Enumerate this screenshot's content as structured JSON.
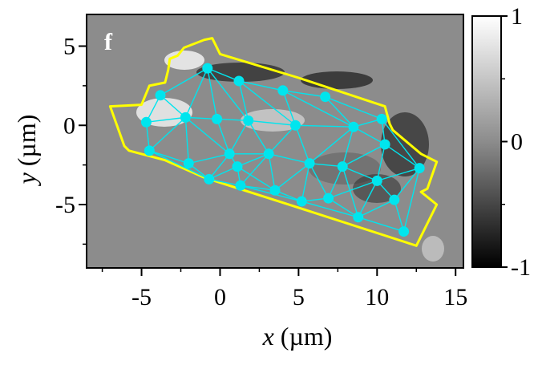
{
  "chart_data": {
    "type": "heatmap",
    "panel_label": "f",
    "xlabel_var": "x",
    "xlabel_unit": " (µm)",
    "ylabel_var": "y",
    "ylabel_unit": " (µm)",
    "xlim": [
      -8.5,
      15.5
    ],
    "ylim": [
      -9,
      7
    ],
    "xticks": [
      -5,
      0,
      5,
      10,
      15
    ],
    "xtick_labels": [
      "-5",
      "0",
      "5",
      "10",
      "15"
    ],
    "yticks": [
      5,
      0,
      -5
    ],
    "ytick_labels": [
      "5",
      "0",
      "-5"
    ],
    "colorbar": {
      "range": [
        -1,
        1
      ],
      "ticks": [
        1,
        0,
        -1
      ],
      "tick_labels": [
        "1",
        "0",
        "-1"
      ],
      "colormap": "grayscale",
      "colors": {
        "min": "#000000",
        "max": "#ffffff",
        "background": "#8c8c8c"
      }
    },
    "boundary": {
      "color": "#ffff00",
      "points": [
        [
          -7,
          1.2
        ],
        [
          -5,
          1.3
        ],
        [
          -4.5,
          2.5
        ],
        [
          -3.5,
          2.7
        ],
        [
          -3.3,
          3.5
        ],
        [
          -3.2,
          4.2
        ],
        [
          -2.7,
          4.4
        ],
        [
          -2.3,
          4.9
        ],
        [
          -1,
          5.4
        ],
        [
          -0.5,
          5.5
        ],
        [
          0,
          4.5
        ],
        [
          5,
          3
        ],
        [
          10.5,
          1.2
        ],
        [
          10.8,
          0.1
        ],
        [
          11,
          -0.3
        ],
        [
          12.8,
          -1.8
        ],
        [
          13.8,
          -2.3
        ],
        [
          13.2,
          -4
        ],
        [
          12.8,
          -4.2
        ],
        [
          13.8,
          -5
        ],
        [
          12.5,
          -7.6
        ],
        [
          5,
          -5.2
        ],
        [
          -1,
          -3.3
        ],
        [
          -3.5,
          -2.2
        ],
        [
          -5.8,
          -1.6
        ],
        [
          -6.1,
          -1.3
        ]
      ]
    },
    "mesh": {
      "color": "#00e5ee",
      "nodes": [
        [
          -0.8,
          3.6
        ],
        [
          1.2,
          2.8
        ],
        [
          4,
          2.2
        ],
        [
          6.7,
          1.8
        ],
        [
          -3.8,
          1.9
        ],
        [
          -4.7,
          0.2
        ],
        [
          -2.2,
          0.5
        ],
        [
          -0.2,
          0.4
        ],
        [
          1.8,
          0.3
        ],
        [
          4.8,
          0
        ],
        [
          8.5,
          -0.1
        ],
        [
          10.3,
          0.4
        ],
        [
          -4.5,
          -1.6
        ],
        [
          0.6,
          -1.8
        ],
        [
          3.1,
          -1.8
        ],
        [
          10.5,
          -1.2
        ],
        [
          -2,
          -2.4
        ],
        [
          1.1,
          -2.6
        ],
        [
          5.7,
          -2.4
        ],
        [
          7.8,
          -2.6
        ],
        [
          12.7,
          -2.7
        ],
        [
          -0.7,
          -3.4
        ],
        [
          1.3,
          -3.8
        ],
        [
          3.5,
          -4.1
        ],
        [
          10,
          -3.5
        ],
        [
          5.2,
          -4.8
        ],
        [
          6.9,
          -4.6
        ],
        [
          11.1,
          -4.7
        ],
        [
          8.8,
          -5.8
        ],
        [
          11.7,
          -6.7
        ]
      ],
      "edges": [
        [
          0,
          1
        ],
        [
          1,
          2
        ],
        [
          2,
          3
        ],
        [
          3,
          11
        ],
        [
          0,
          4
        ],
        [
          4,
          5
        ],
        [
          5,
          12
        ],
        [
          12,
          21
        ],
        [
          21,
          22
        ],
        [
          22,
          25
        ],
        [
          25,
          28
        ],
        [
          28,
          29
        ],
        [
          29,
          20
        ],
        [
          20,
          11
        ],
        [
          0,
          6
        ],
        [
          0,
          7
        ],
        [
          0,
          8
        ],
        [
          1,
          8
        ],
        [
          1,
          9
        ],
        [
          2,
          9
        ],
        [
          2,
          10
        ],
        [
          3,
          10
        ],
        [
          10,
          11
        ],
        [
          4,
          6
        ],
        [
          5,
          6
        ],
        [
          6,
          7
        ],
        [
          7,
          8
        ],
        [
          8,
          9
        ],
        [
          9,
          10
        ],
        [
          10,
          15
        ],
        [
          11,
          15
        ],
        [
          15,
          20
        ],
        [
          6,
          12
        ],
        [
          6,
          16
        ],
        [
          6,
          13
        ],
        [
          7,
          13
        ],
        [
          8,
          13
        ],
        [
          8,
          14
        ],
        [
          9,
          14
        ],
        [
          9,
          18
        ],
        [
          10,
          18
        ],
        [
          10,
          19
        ],
        [
          15,
          19
        ],
        [
          15,
          24
        ],
        [
          20,
          24
        ],
        [
          20,
          27
        ],
        [
          12,
          16
        ],
        [
          16,
          13
        ],
        [
          13,
          14
        ],
        [
          14,
          18
        ],
        [
          18,
          19
        ],
        [
          19,
          24
        ],
        [
          24,
          27
        ],
        [
          27,
          29
        ],
        [
          16,
          21
        ],
        [
          13,
          17
        ],
        [
          13,
          21
        ],
        [
          17,
          21
        ],
        [
          17,
          22
        ],
        [
          14,
          17
        ],
        [
          14,
          23
        ],
        [
          17,
          23
        ],
        [
          22,
          23
        ],
        [
          23,
          25
        ],
        [
          18,
          23
        ],
        [
          18,
          25
        ],
        [
          18,
          26
        ],
        [
          19,
          26
        ],
        [
          25,
          26
        ],
        [
          26,
          28
        ],
        [
          19,
          28
        ],
        [
          24,
          28
        ],
        [
          27,
          28
        ],
        [
          24,
          26
        ],
        [
          14,
          22
        ]
      ]
    }
  }
}
